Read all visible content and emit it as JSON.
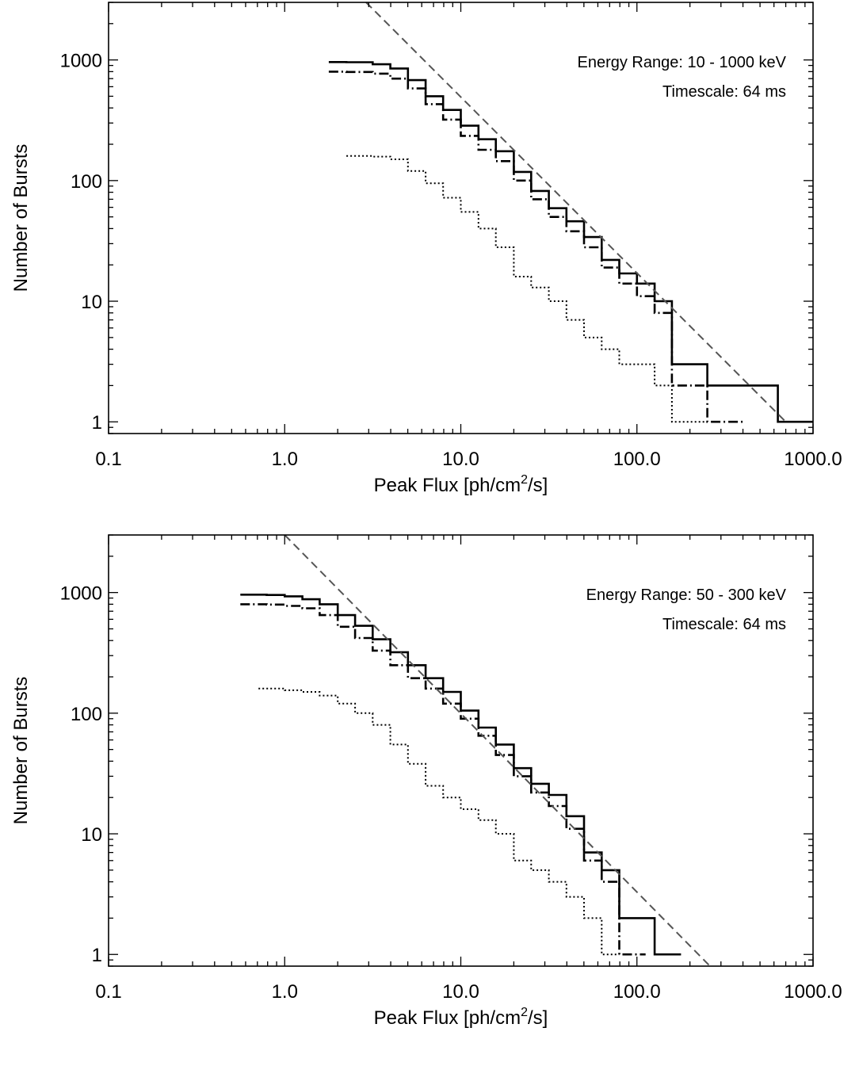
{
  "chart_data": [
    {
      "type": "line",
      "xscale": "log",
      "yscale": "log",
      "xlim": [
        0.1,
        1000.0
      ],
      "ylim": [
        0.8,
        3000
      ],
      "x_ticks": [
        0.1,
        1.0,
        10.0,
        100.0,
        1000.0
      ],
      "x_tick_labels": [
        "0.1",
        "1.0",
        "10.0",
        "100.0",
        "1000.0"
      ],
      "y_ticks": [
        1,
        10,
        100,
        1000
      ],
      "y_tick_labels": [
        "1",
        "10",
        "100",
        "1000"
      ],
      "xlabel_prefix": "Peak Flux [ph/cm",
      "xlabel_sup": "2",
      "xlabel_suffix": "/s]",
      "ylabel": "Number of Bursts",
      "annotations": [
        "Energy Range: 10 - 1000 keV",
        "Timescale: 64 ms"
      ],
      "series": [
        {
          "style": "solid",
          "color": "#000000",
          "edges": [
            1.78,
            2.24,
            3.16,
            3.98,
            5.01,
            6.31,
            7.94,
            10.0,
            12.6,
            15.8,
            20.0,
            25.1,
            31.6,
            39.8,
            50.1,
            63.1,
            79.4,
            100.0,
            126.0,
            158.0,
            251.0,
            631.0,
            1000.0
          ],
          "counts": [
            960,
            958,
            920,
            850,
            680,
            500,
            385,
            285,
            220,
            175,
            118,
            82,
            59,
            46,
            34,
            22,
            17,
            14,
            10,
            3,
            2,
            1
          ]
        },
        {
          "style": "dashdot",
          "color": "#000000",
          "edges": [
            1.78,
            2.24,
            3.16,
            3.98,
            5.01,
            6.31,
            7.94,
            10.0,
            12.6,
            15.8,
            20.0,
            25.1,
            31.6,
            39.8,
            50.1,
            63.1,
            79.4,
            100.0,
            126.0,
            158.0,
            251.0,
            398.0
          ],
          "counts": [
            800,
            795,
            770,
            700,
            580,
            430,
            320,
            235,
            180,
            145,
            100,
            70,
            50,
            38,
            28,
            19,
            14,
            11,
            8,
            2,
            1
          ]
        },
        {
          "style": "dotted",
          "color": "#000000",
          "edges": [
            2.24,
            3.16,
            3.98,
            5.01,
            6.31,
            7.94,
            10.0,
            12.6,
            15.8,
            20.0,
            25.1,
            31.6,
            39.8,
            50.1,
            63.1,
            79.4,
            100.0,
            126.0,
            158.0,
            251.0
          ],
          "counts": [
            160,
            158,
            150,
            120,
            95,
            72,
            55,
            40,
            28,
            16,
            13,
            10,
            7,
            5,
            4,
            3,
            3,
            2,
            1
          ]
        },
        {
          "style": "dashed",
          "color": "#555555",
          "x": [
            2.9,
            700
          ],
          "y": [
            3000,
            1
          ]
        }
      ]
    },
    {
      "type": "line",
      "xscale": "log",
      "yscale": "log",
      "xlim": [
        0.1,
        1000.0
      ],
      "ylim": [
        0.8,
        3000
      ],
      "x_ticks": [
        0.1,
        1.0,
        10.0,
        100.0,
        1000.0
      ],
      "x_tick_labels": [
        "0.1",
        "1.0",
        "10.0",
        "100.0",
        "1000.0"
      ],
      "y_ticks": [
        1,
        10,
        100,
        1000
      ],
      "y_tick_labels": [
        "1",
        "10",
        "100",
        "1000"
      ],
      "xlabel_prefix": "Peak Flux [ph/cm",
      "xlabel_sup": "2",
      "xlabel_suffix": "/s]",
      "ylabel": "Number of Bursts",
      "annotations": [
        "Energy Range: 50 - 300 keV",
        "Timescale: 64 ms"
      ],
      "series": [
        {
          "style": "solid",
          "color": "#000000",
          "edges": [
            0.56,
            0.79,
            1.0,
            1.26,
            1.58,
            2.0,
            2.51,
            3.16,
            3.98,
            5.01,
            6.31,
            7.94,
            10.0,
            12.6,
            15.8,
            20.0,
            25.1,
            31.6,
            39.8,
            50.1,
            63.1,
            79.4,
            126.0,
            178.0
          ],
          "counts": [
            960,
            955,
            930,
            880,
            800,
            650,
            530,
            410,
            320,
            250,
            195,
            150,
            105,
            76,
            55,
            35,
            26,
            21,
            14,
            7,
            5,
            2,
            1
          ]
        },
        {
          "style": "dashdot",
          "color": "#000000",
          "edges": [
            0.56,
            0.79,
            1.0,
            1.26,
            1.58,
            2.0,
            2.51,
            3.16,
            3.98,
            5.01,
            6.31,
            7.94,
            10.0,
            12.6,
            15.8,
            20.0,
            25.1,
            31.6,
            39.8,
            50.1,
            63.1,
            79.4,
            112.0
          ],
          "counts": [
            800,
            795,
            775,
            740,
            650,
            520,
            420,
            330,
            250,
            195,
            160,
            120,
            90,
            65,
            45,
            30,
            22,
            17,
            11,
            6,
            4,
            1
          ]
        },
        {
          "style": "dotted",
          "color": "#000000",
          "edges": [
            0.71,
            1.0,
            1.26,
            1.58,
            2.0,
            2.51,
            3.16,
            3.98,
            5.01,
            6.31,
            7.94,
            10.0,
            12.6,
            15.8,
            20.0,
            25.1,
            31.6,
            39.8,
            50.1,
            63.1,
            79.4
          ],
          "counts": [
            160,
            155,
            150,
            140,
            120,
            100,
            80,
            55,
            38,
            25,
            20,
            16,
            13,
            10,
            6,
            5,
            4,
            3,
            2,
            1
          ]
        },
        {
          "style": "dashed",
          "color": "#555555",
          "x": [
            1.0,
            260
          ],
          "y": [
            3000,
            0.8
          ]
        }
      ]
    }
  ]
}
